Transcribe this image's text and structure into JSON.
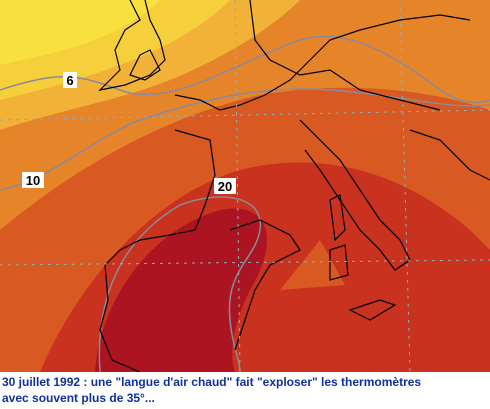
{
  "map": {
    "contour_labels": [
      "6",
      "10",
      "20"
    ]
  },
  "caption": {
    "lines": [
      "30 juillet 1992 : une \"langue d'air chaud\" fait \"exploser\" les thermomètres",
      "avec souvent plus de 35°..."
    ]
  }
}
